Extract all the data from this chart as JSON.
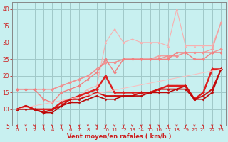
{
  "xlabel": "Vent moyen/en rafales ( km/h )",
  "bg_color": "#c8f0f0",
  "grid_color": "#a0c8c8",
  "xlim": [
    -0.5,
    23.5
  ],
  "ylim": [
    5,
    42
  ],
  "yticks": [
    5,
    10,
    15,
    20,
    25,
    30,
    35,
    40
  ],
  "xticks": [
    0,
    1,
    2,
    3,
    4,
    5,
    6,
    7,
    8,
    9,
    10,
    11,
    12,
    13,
    14,
    15,
    16,
    17,
    18,
    19,
    20,
    21,
    22,
    23
  ],
  "lines": [
    {
      "x": [
        0,
        1,
        2,
        3,
        4,
        5,
        6,
        7,
        8,
        9,
        10,
        11,
        12,
        13,
        14,
        15,
        16,
        17,
        18,
        19,
        20,
        21,
        22,
        23
      ],
      "y": [
        10,
        11,
        10,
        10,
        10,
        11,
        12,
        14,
        16,
        17,
        30,
        34,
        30,
        31,
        30,
        30,
        30,
        29,
        40,
        29,
        29,
        29,
        29,
        36
      ],
      "color": "#f8b0b0",
      "lw": 0.8,
      "marker": "^",
      "ms": 2.0,
      "ls": "-"
    },
    {
      "x": [
        0,
        1,
        2,
        3,
        4,
        5,
        6,
        7,
        8,
        9,
        10,
        11,
        12,
        13,
        14,
        15,
        16,
        17,
        18,
        19,
        20,
        21,
        22,
        23
      ],
      "y": [
        16,
        16,
        16,
        16,
        16,
        17,
        18,
        19,
        20,
        22,
        24,
        24,
        25,
        25,
        25,
        25,
        26,
        26,
        26,
        27,
        27,
        27,
        28,
        36
      ],
      "color": "#f0a0a0",
      "lw": 1.0,
      "marker": "D",
      "ms": 2.0,
      "ls": "-"
    },
    {
      "x": [
        0,
        1,
        2,
        3,
        4,
        5,
        6,
        7,
        8,
        9,
        10,
        11,
        12,
        13,
        14,
        15,
        16,
        17,
        18,
        19,
        20,
        21,
        22,
        23
      ],
      "y": [
        16,
        16,
        16,
        16,
        16,
        17,
        18,
        19,
        20,
        22,
        24,
        24,
        25,
        25,
        25,
        25,
        25,
        26,
        26,
        27,
        27,
        27,
        27,
        28
      ],
      "color": "#f09090",
      "lw": 1.0,
      "marker": "D",
      "ms": 2.0,
      "ls": "-"
    },
    {
      "x": [
        0,
        1,
        2,
        3,
        4,
        5,
        6,
        7,
        8,
        9,
        10,
        11,
        12,
        13,
        14,
        15,
        16,
        17,
        18,
        19,
        20,
        21,
        22,
        23
      ],
      "y": [
        16,
        16,
        16,
        13,
        12,
        15,
        16,
        17,
        19,
        21,
        25,
        21,
        25,
        25,
        25,
        25,
        25,
        25,
        27,
        27,
        25,
        25,
        27,
        27
      ],
      "color": "#f08080",
      "lw": 1.0,
      "marker": "D",
      "ms": 2.0,
      "ls": "-"
    },
    {
      "x": [
        0,
        1,
        2,
        3,
        4,
        5,
        6,
        7,
        8,
        9,
        10,
        11,
        12,
        13,
        14,
        15,
        16,
        17,
        18,
        19,
        20,
        21,
        22,
        23
      ],
      "y": [
        10,
        11,
        10,
        10,
        10,
        12,
        13,
        14,
        15,
        16,
        20,
        15,
        15,
        15,
        15,
        15,
        16,
        17,
        17,
        17,
        13,
        15,
        22,
        22
      ],
      "color": "#dd2020",
      "lw": 1.8,
      "marker": "D",
      "ms": 2.0,
      "ls": "-"
    },
    {
      "x": [
        0,
        1,
        2,
        3,
        4,
        5,
        6,
        7,
        8,
        9,
        10,
        11,
        12,
        13,
        14,
        15,
        16,
        17,
        18,
        19,
        20,
        21,
        22,
        23
      ],
      "y": [
        10,
        11,
        10,
        9,
        10,
        11,
        13,
        13,
        14,
        15,
        14,
        14,
        14,
        14,
        15,
        15,
        16,
        16,
        16,
        17,
        13,
        14,
        16,
        22
      ],
      "color": "#cc1010",
      "lw": 1.4,
      "marker": "D",
      "ms": 1.8,
      "ls": "-"
    },
    {
      "x": [
        0,
        1,
        2,
        3,
        4,
        5,
        6,
        7,
        8,
        9,
        10,
        11,
        12,
        13,
        14,
        15,
        16,
        17,
        18,
        19,
        20,
        21,
        22,
        23
      ],
      "y": [
        10,
        10,
        10,
        9,
        9,
        11,
        12,
        12,
        13,
        14,
        13,
        13,
        14,
        14,
        14,
        15,
        15,
        15,
        16,
        16,
        13,
        13,
        15,
        22
      ],
      "color": "#bb0808",
      "lw": 1.2,
      "marker": "D",
      "ms": 1.6,
      "ls": "-"
    },
    {
      "x": [
        0,
        23
      ],
      "y": [
        10,
        22
      ],
      "color": "#f8c0c0",
      "lw": 0.8,
      "marker": null,
      "ms": 0,
      "ls": "-"
    }
  ],
  "arrow_color": "#cc2020",
  "tick_label_color": "#cc2020",
  "xlabel_color": "#cc2020",
  "axis_color": "#888888"
}
